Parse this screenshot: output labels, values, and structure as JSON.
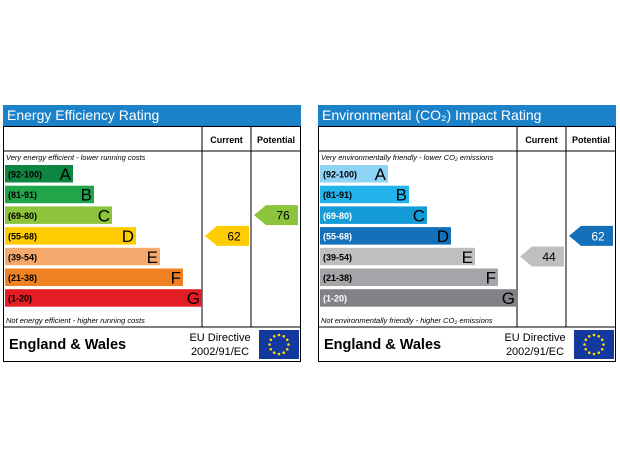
{
  "chart_data": [
    {
      "type": "bar",
      "title": "Energy Efficiency Rating",
      "column_headers": [
        "Current",
        "Potential"
      ],
      "top_note": "Very energy efficient - lower running costs",
      "bottom_note": "Not energy efficient - higher running costs",
      "bands": [
        {
          "range": "(92-100)",
          "letter": "A",
          "color": "#0e8540",
          "range_color": "#000000"
        },
        {
          "range": "(81-91)",
          "letter": "B",
          "color": "#21a54a",
          "range_color": "#000000"
        },
        {
          "range": "(69-80)",
          "letter": "C",
          "color": "#8cc43c",
          "range_color": "#000000"
        },
        {
          "range": "(55-68)",
          "letter": "D",
          "color": "#ffcc00",
          "range_color": "#000000"
        },
        {
          "range": "(39-54)",
          "letter": "E",
          "color": "#f6a96c",
          "range_color": "#000000"
        },
        {
          "range": "(21-38)",
          "letter": "F",
          "color": "#f08122",
          "range_color": "#000000"
        },
        {
          "range": "(1-20)",
          "letter": "G",
          "color": "#e31d23",
          "range_color": "#000000"
        }
      ],
      "current": {
        "value": "62",
        "band": "D",
        "color": "#ffcc00",
        "text_color": "#000000"
      },
      "potential": {
        "value": "76",
        "band": "C",
        "color": "#8cc43c",
        "text_color": "#000000"
      },
      "footer_region": "England & Wales",
      "footer_directive_line1": "EU Directive",
      "footer_directive_line2": "2002/91/EC"
    },
    {
      "type": "bar",
      "title": "Environmental (CO₂) Impact Rating",
      "column_headers": [
        "Current",
        "Potential"
      ],
      "top_note": "Very environmentally friendly - lower CO₂ emissions",
      "bottom_note": "Not environmentally friendly - higher CO₂ emissions",
      "bands": [
        {
          "range": "(92-100)",
          "letter": "A",
          "color": "#8fd3f5",
          "range_color": "#000000"
        },
        {
          "range": "(81-91)",
          "letter": "B",
          "color": "#22b4ea",
          "range_color": "#000000"
        },
        {
          "range": "(69-80)",
          "letter": "C",
          "color": "#149cd8",
          "range_color": "#ffffff"
        },
        {
          "range": "(55-68)",
          "letter": "D",
          "color": "#1470b8",
          "range_color": "#ffffff"
        },
        {
          "range": "(39-54)",
          "letter": "E",
          "color": "#bdbfc1",
          "range_color": "#000000"
        },
        {
          "range": "(21-38)",
          "letter": "F",
          "color": "#a4a5a8",
          "range_color": "#000000"
        },
        {
          "range": "(1-20)",
          "letter": "G",
          "color": "#808285",
          "range_color": "#ffffff"
        }
      ],
      "current": {
        "value": "44",
        "band": "E",
        "color": "#bdbfc1",
        "text_color": "#000000"
      },
      "potential": {
        "value": "62",
        "band": "D",
        "color": "#1470b8",
        "text_color": "#ffffff"
      },
      "footer_region": "England & Wales",
      "footer_directive_line1": "EU Directive",
      "footer_directive_line2": "2002/91/EC"
    }
  ]
}
